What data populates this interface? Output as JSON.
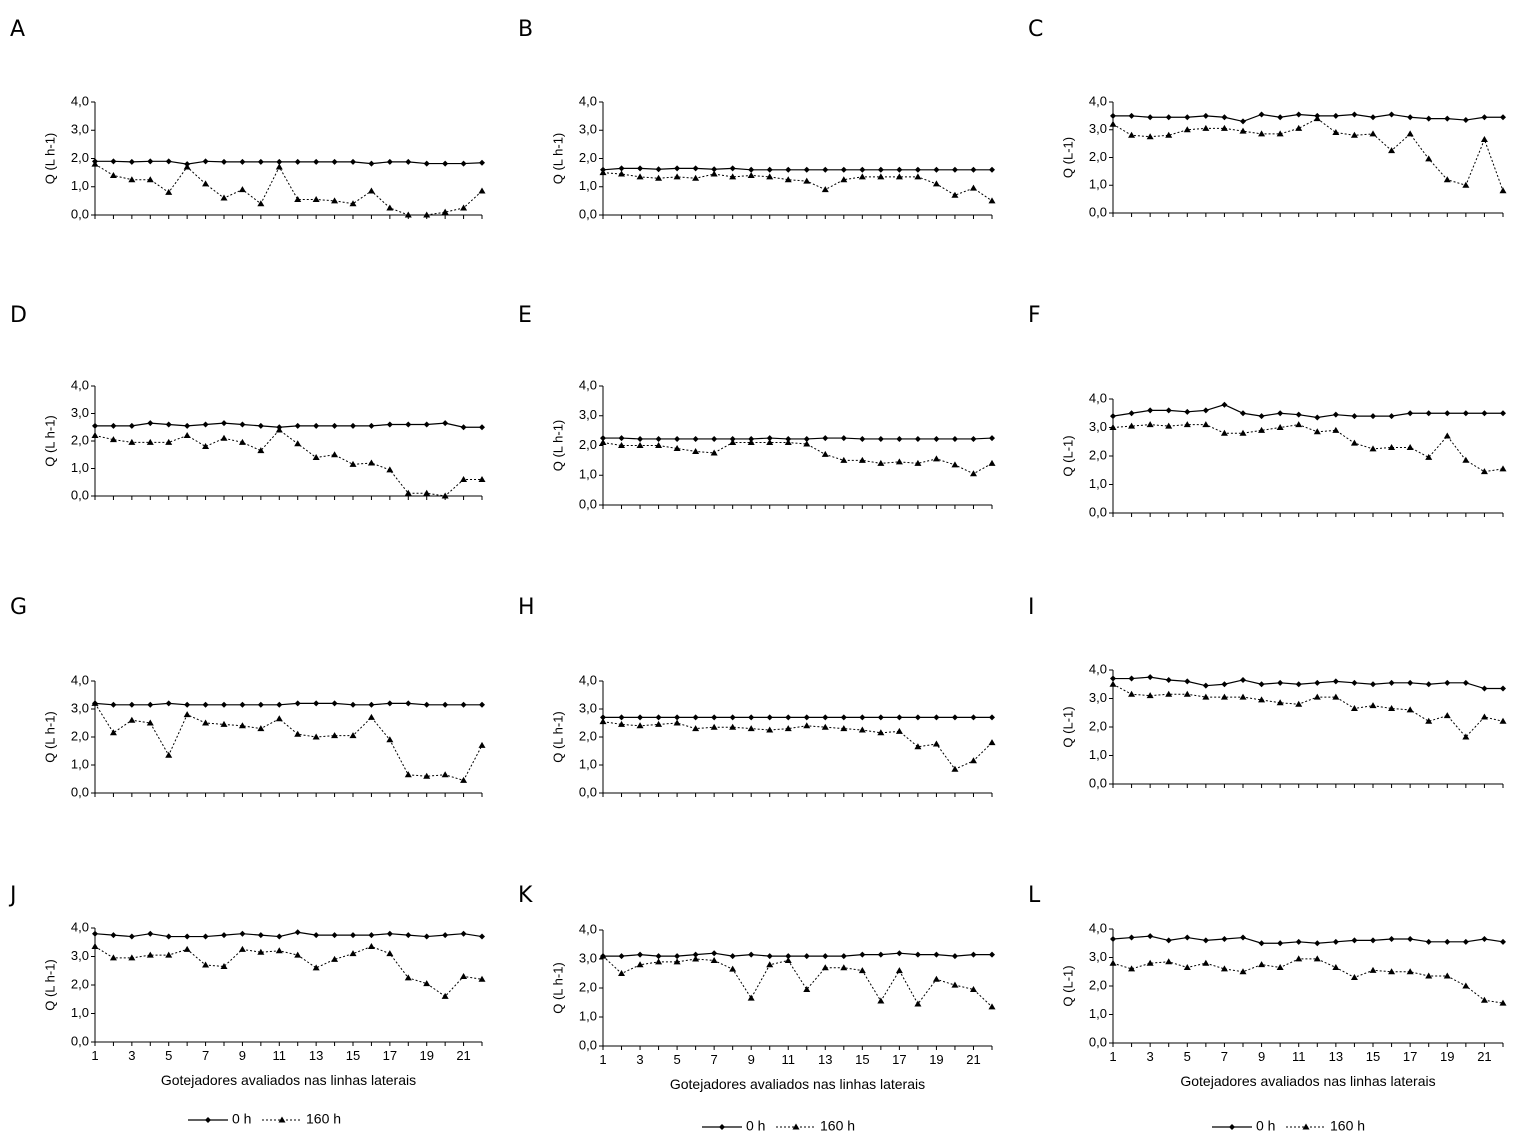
{
  "chart_data": [
    {
      "type": "line",
      "panel": "A",
      "ylabel": "Q (L h-1)",
      "ylim": [
        0,
        4
      ],
      "x": [
        1,
        2,
        3,
        4,
        5,
        6,
        7,
        8,
        9,
        10,
        11,
        12,
        13,
        14,
        15,
        16,
        17,
        18,
        19,
        20,
        21,
        22
      ],
      "series": [
        {
          "name": "0 h",
          "values": [
            1.9,
            1.9,
            1.88,
            1.9,
            1.9,
            1.8,
            1.9,
            1.88,
            1.88,
            1.88,
            1.88,
            1.88,
            1.88,
            1.88,
            1.88,
            1.82,
            1.88,
            1.88,
            1.82,
            1.82,
            1.82,
            1.85
          ]
        },
        {
          "name": "160 h",
          "values": [
            1.8,
            1.4,
            1.25,
            1.25,
            0.8,
            1.7,
            1.1,
            0.6,
            0.9,
            0.4,
            1.7,
            0.55,
            0.55,
            0.5,
            0.4,
            0.85,
            0.25,
            0.0,
            0.0,
            0.1,
            0.25,
            0.85
          ]
        }
      ]
    },
    {
      "type": "line",
      "panel": "B",
      "ylabel": "Q (L h-1)",
      "ylim": [
        0,
        4
      ],
      "x": [
        1,
        2,
        3,
        4,
        5,
        6,
        7,
        8,
        9,
        10,
        11,
        12,
        13,
        14,
        15,
        16,
        17,
        18,
        19,
        20,
        21,
        22
      ],
      "series": [
        {
          "name": "0 h",
          "values": [
            1.6,
            1.65,
            1.65,
            1.62,
            1.65,
            1.65,
            1.62,
            1.65,
            1.6,
            1.6,
            1.6,
            1.6,
            1.6,
            1.6,
            1.6,
            1.6,
            1.6,
            1.6,
            1.6,
            1.6,
            1.6,
            1.6
          ]
        },
        {
          "name": "160 h",
          "values": [
            1.5,
            1.45,
            1.35,
            1.3,
            1.35,
            1.3,
            1.45,
            1.35,
            1.4,
            1.35,
            1.25,
            1.2,
            0.9,
            1.25,
            1.35,
            1.35,
            1.35,
            1.35,
            1.1,
            0.7,
            0.95,
            0.5
          ]
        }
      ]
    },
    {
      "type": "line",
      "panel": "C",
      "ylabel": "Q (L-1)",
      "ylim": [
        0,
        4
      ],
      "x": [
        1,
        2,
        3,
        4,
        5,
        6,
        7,
        8,
        9,
        10,
        11,
        12,
        13,
        14,
        15,
        16,
        17,
        18,
        19,
        20,
        21,
        22
      ],
      "series": [
        {
          "name": "0 h",
          "values": [
            3.5,
            3.5,
            3.45,
            3.45,
            3.45,
            3.5,
            3.45,
            3.3,
            3.55,
            3.45,
            3.55,
            3.5,
            3.5,
            3.55,
            3.45,
            3.55,
            3.45,
            3.4,
            3.4,
            3.35,
            3.45,
            3.45
          ]
        },
        {
          "name": "160 h",
          "values": [
            3.2,
            2.8,
            2.75,
            2.8,
            3.0,
            3.05,
            3.05,
            2.95,
            2.85,
            2.85,
            3.05,
            3.4,
            2.9,
            2.8,
            2.85,
            2.25,
            2.85,
            1.95,
            1.2,
            1.0,
            2.65,
            0.8
          ]
        }
      ]
    },
    {
      "type": "line",
      "panel": "D",
      "ylabel": "Q (L h-1)",
      "ylim": [
        0,
        4
      ],
      "x": [
        1,
        2,
        3,
        4,
        5,
        6,
        7,
        8,
        9,
        10,
        11,
        12,
        13,
        14,
        15,
        16,
        17,
        18,
        19,
        20,
        21,
        22
      ],
      "series": [
        {
          "name": "0 h",
          "values": [
            2.55,
            2.55,
            2.55,
            2.65,
            2.6,
            2.55,
            2.6,
            2.65,
            2.6,
            2.55,
            2.5,
            2.55,
            2.55,
            2.55,
            2.55,
            2.55,
            2.6,
            2.6,
            2.6,
            2.65,
            2.5,
            2.5
          ]
        },
        {
          "name": "160 h",
          "values": [
            2.2,
            2.05,
            1.95,
            1.95,
            1.95,
            2.2,
            1.8,
            2.1,
            1.95,
            1.65,
            2.4,
            1.9,
            1.4,
            1.5,
            1.15,
            1.2,
            0.95,
            0.1,
            0.1,
            0.0,
            0.6,
            0.6
          ]
        }
      ]
    },
    {
      "type": "line",
      "panel": "E",
      "ylabel": "Q (L h-1)",
      "ylim": [
        0,
        4
      ],
      "x": [
        1,
        2,
        3,
        4,
        5,
        6,
        7,
        8,
        9,
        10,
        11,
        12,
        13,
        14,
        15,
        16,
        17,
        18,
        19,
        20,
        21,
        22
      ],
      "series": [
        {
          "name": "0 h",
          "values": [
            2.25,
            2.25,
            2.22,
            2.22,
            2.22,
            2.22,
            2.22,
            2.22,
            2.22,
            2.25,
            2.22,
            2.22,
            2.25,
            2.25,
            2.22,
            2.22,
            2.22,
            2.22,
            2.22,
            2.22,
            2.22,
            2.25
          ]
        },
        {
          "name": "160 h",
          "values": [
            2.1,
            2.0,
            2.0,
            2.0,
            1.9,
            1.8,
            1.75,
            2.1,
            2.1,
            2.1,
            2.1,
            2.05,
            1.7,
            1.5,
            1.5,
            1.4,
            1.45,
            1.4,
            1.55,
            1.35,
            1.05,
            1.4
          ]
        }
      ]
    },
    {
      "type": "line",
      "panel": "F",
      "ylabel": "Q (L-1)",
      "ylim": [
        0,
        4
      ],
      "x": [
        1,
        2,
        3,
        4,
        5,
        6,
        7,
        8,
        9,
        10,
        11,
        12,
        13,
        14,
        15,
        16,
        17,
        18,
        19,
        20,
        21,
        22
      ],
      "series": [
        {
          "name": "0 h",
          "values": [
            3.4,
            3.5,
            3.6,
            3.6,
            3.55,
            3.6,
            3.8,
            3.5,
            3.4,
            3.5,
            3.45,
            3.35,
            3.45,
            3.4,
            3.4,
            3.4,
            3.5,
            3.5,
            3.5,
            3.5,
            3.5,
            3.5
          ]
        },
        {
          "name": "160 h",
          "values": [
            3.0,
            3.05,
            3.1,
            3.05,
            3.1,
            3.1,
            2.8,
            2.8,
            2.9,
            3.0,
            3.1,
            2.85,
            2.9,
            2.45,
            2.25,
            2.3,
            2.3,
            1.95,
            2.7,
            1.85,
            1.45,
            1.55
          ]
        }
      ]
    },
    {
      "type": "line",
      "panel": "G",
      "ylabel": "Q (L h-1)",
      "ylim": [
        0,
        4
      ],
      "x": [
        1,
        2,
        3,
        4,
        5,
        6,
        7,
        8,
        9,
        10,
        11,
        12,
        13,
        14,
        15,
        16,
        17,
        18,
        19,
        20,
        21,
        22
      ],
      "series": [
        {
          "name": "0 h",
          "values": [
            3.2,
            3.15,
            3.15,
            3.15,
            3.2,
            3.15,
            3.15,
            3.15,
            3.15,
            3.15,
            3.15,
            3.2,
            3.2,
            3.2,
            3.15,
            3.15,
            3.2,
            3.2,
            3.15,
            3.15,
            3.15,
            3.15
          ]
        },
        {
          "name": "160 h",
          "values": [
            3.2,
            2.15,
            2.6,
            2.5,
            1.35,
            2.8,
            2.5,
            2.45,
            2.4,
            2.3,
            2.65,
            2.1,
            2.0,
            2.05,
            2.05,
            2.7,
            1.9,
            0.65,
            0.6,
            0.65,
            0.45,
            1.7
          ]
        }
      ]
    },
    {
      "type": "line",
      "panel": "H",
      "ylabel": "Q (L h-1)",
      "ylim": [
        0,
        4
      ],
      "x": [
        1,
        2,
        3,
        4,
        5,
        6,
        7,
        8,
        9,
        10,
        11,
        12,
        13,
        14,
        15,
        16,
        17,
        18,
        19,
        20,
        21,
        22
      ],
      "series": [
        {
          "name": "0 h",
          "values": [
            2.7,
            2.7,
            2.7,
            2.7,
            2.7,
            2.7,
            2.7,
            2.7,
            2.7,
            2.7,
            2.7,
            2.7,
            2.7,
            2.7,
            2.7,
            2.7,
            2.7,
            2.7,
            2.7,
            2.7,
            2.7,
            2.7
          ]
        },
        {
          "name": "160 h",
          "values": [
            2.55,
            2.45,
            2.4,
            2.45,
            2.5,
            2.3,
            2.35,
            2.35,
            2.3,
            2.25,
            2.3,
            2.4,
            2.35,
            2.3,
            2.25,
            2.15,
            2.2,
            1.65,
            1.75,
            0.85,
            1.15,
            1.8
          ]
        }
      ]
    },
    {
      "type": "line",
      "panel": "I",
      "ylabel": "Q (L-1)",
      "ylim": [
        0,
        4
      ],
      "x": [
        1,
        2,
        3,
        4,
        5,
        6,
        7,
        8,
        9,
        10,
        11,
        12,
        13,
        14,
        15,
        16,
        17,
        18,
        19,
        20,
        21,
        22
      ],
      "series": [
        {
          "name": "0 h",
          "values": [
            3.7,
            3.7,
            3.75,
            3.65,
            3.6,
            3.45,
            3.5,
            3.65,
            3.5,
            3.55,
            3.5,
            3.55,
            3.6,
            3.55,
            3.5,
            3.55,
            3.55,
            3.5,
            3.55,
            3.55,
            3.35,
            3.35
          ]
        },
        {
          "name": "160 h",
          "values": [
            3.5,
            3.15,
            3.1,
            3.15,
            3.15,
            3.05,
            3.05,
            3.05,
            2.95,
            2.85,
            2.8,
            3.05,
            3.05,
            2.65,
            2.75,
            2.65,
            2.6,
            2.2,
            2.4,
            1.65,
            2.35,
            2.2
          ]
        }
      ]
    },
    {
      "type": "line",
      "panel": "J",
      "ylabel": "Q (L h-1)",
      "ylim": [
        0,
        4
      ],
      "x": [
        1,
        2,
        3,
        4,
        5,
        6,
        7,
        8,
        9,
        10,
        11,
        12,
        13,
        14,
        15,
        16,
        17,
        18,
        19,
        20,
        21,
        22
      ],
      "series": [
        {
          "name": "0 h",
          "values": [
            3.8,
            3.75,
            3.7,
            3.8,
            3.7,
            3.7,
            3.7,
            3.75,
            3.8,
            3.75,
            3.7,
            3.85,
            3.75,
            3.75,
            3.75,
            3.75,
            3.8,
            3.75,
            3.7,
            3.75,
            3.8,
            3.7
          ]
        },
        {
          "name": "160 h",
          "values": [
            3.35,
            2.95,
            2.95,
            3.05,
            3.05,
            3.25,
            2.7,
            2.65,
            3.25,
            3.15,
            3.2,
            3.05,
            2.6,
            2.9,
            3.1,
            3.35,
            3.1,
            2.25,
            2.05,
            1.6,
            2.3,
            2.2
          ]
        }
      ]
    },
    {
      "type": "line",
      "panel": "K",
      "ylabel": "Q (L h-1)",
      "ylim": [
        0,
        4
      ],
      "x": [
        1,
        2,
        3,
        4,
        5,
        6,
        7,
        8,
        9,
        10,
        11,
        12,
        13,
        14,
        15,
        16,
        17,
        18,
        19,
        20,
        21,
        22
      ],
      "series": [
        {
          "name": "0 h",
          "values": [
            3.1,
            3.1,
            3.15,
            3.1,
            3.1,
            3.15,
            3.2,
            3.1,
            3.15,
            3.1,
            3.1,
            3.1,
            3.1,
            3.1,
            3.15,
            3.15,
            3.2,
            3.15,
            3.15,
            3.1,
            3.15,
            3.15
          ]
        },
        {
          "name": "160 h",
          "values": [
            3.1,
            2.5,
            2.8,
            2.9,
            2.9,
            3.0,
            2.95,
            2.65,
            1.65,
            2.8,
            2.95,
            1.95,
            2.7,
            2.7,
            2.6,
            1.55,
            2.6,
            1.45,
            2.3,
            2.1,
            1.95,
            1.35
          ]
        }
      ]
    },
    {
      "type": "line",
      "panel": "L",
      "ylabel": "Q (L-1)",
      "ylim": [
        0,
        4
      ],
      "x": [
        1,
        2,
        3,
        4,
        5,
        6,
        7,
        8,
        9,
        10,
        11,
        12,
        13,
        14,
        15,
        16,
        17,
        18,
        19,
        20,
        21,
        22
      ],
      "series": [
        {
          "name": "0 h",
          "values": [
            3.65,
            3.7,
            3.75,
            3.6,
            3.7,
            3.6,
            3.65,
            3.7,
            3.5,
            3.5,
            3.55,
            3.5,
            3.55,
            3.6,
            3.6,
            3.65,
            3.65,
            3.55,
            3.55,
            3.55,
            3.65,
            3.55
          ]
        },
        {
          "name": "160 h",
          "values": [
            2.8,
            2.6,
            2.8,
            2.85,
            2.65,
            2.8,
            2.6,
            2.5,
            2.75,
            2.65,
            2.95,
            2.95,
            2.65,
            2.3,
            2.55,
            2.5,
            2.5,
            2.35,
            2.35,
            2.0,
            1.5,
            1.4
          ]
        }
      ]
    }
  ],
  "labels": {
    "y_ticks": [
      "0,0",
      "1,0",
      "2,0",
      "3,0",
      "4,0"
    ],
    "x_ticks": [
      "1",
      "3",
      "5",
      "7",
      "9",
      "11",
      "13",
      "15",
      "17",
      "19",
      "21"
    ],
    "x_title": "Gotejadores avaliados nas linhas laterais",
    "legend_0h": "0 h",
    "legend_160h": "160 h"
  },
  "colors": {
    "line": "#000000",
    "axis": "#000000",
    "background": "#ffffff"
  }
}
